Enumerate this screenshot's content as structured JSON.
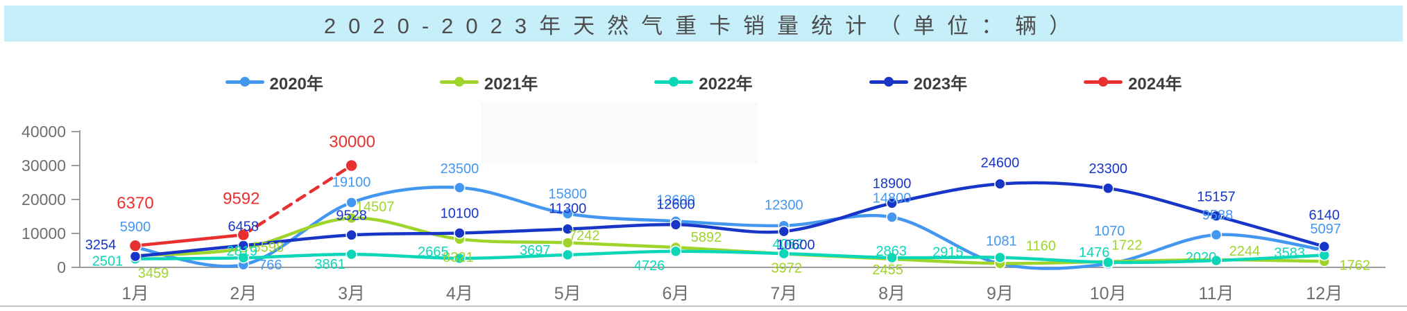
{
  "title": {
    "text": "2020-2023年天然气重卡销量统计（单位：辆）"
  },
  "legend": [
    {
      "label": "2020年",
      "color": "#4397f0"
    },
    {
      "label": "2021年",
      "color": "#9fd42a"
    },
    {
      "label": "2022年",
      "color": "#0bd6b8"
    },
    {
      "label": "2023年",
      "color": "#1736c7"
    },
    {
      "label": "2024年",
      "color": "#e93030"
    }
  ],
  "chart_data": {
    "type": "line",
    "title": "2020-2023年天然气重卡销量统计（单位：辆）",
    "xlabel": "",
    "ylabel": "",
    "ylim": [
      0,
      40000
    ],
    "yticks": [
      0,
      10000,
      20000,
      30000,
      40000
    ],
    "grid": false,
    "legend_position": "top",
    "line_style": "smooth",
    "categories": [
      "1月",
      "2月",
      "3月",
      "4月",
      "5月",
      "6月",
      "7月",
      "8月",
      "9月",
      "10月",
      "11月",
      "12月"
    ],
    "series": [
      {
        "name": "2020年",
        "color": "#4397f0",
        "values": [
          5900,
          766,
          19100,
          23500,
          15800,
          13600,
          12300,
          14800,
          1081,
          1070,
          9588,
          5097
        ],
        "label_offsets": [
          [
            0,
            -30
          ],
          [
            39,
            0
          ],
          [
            0,
            -30
          ],
          [
            0,
            -28
          ],
          [
            0,
            -29
          ],
          [
            0,
            -31
          ],
          [
            0,
            -30
          ],
          [
            0,
            -28
          ],
          [
            2,
            -33
          ],
          [
            2,
            -48
          ],
          [
            2,
            -29
          ],
          [
            2,
            -31
          ]
        ]
      },
      {
        "name": "2021年",
        "color": "#9fd42a",
        "values": [
          3459,
          5598,
          14507,
          8321,
          7242,
          5892,
          3972,
          2455,
          1160,
          1722,
          2244,
          1762
        ],
        "label_offsets": [
          [
            26,
            25
          ],
          [
            36,
            -2
          ],
          [
            34,
            -17
          ],
          [
            -2,
            26
          ],
          [
            24,
            -11
          ],
          [
            44,
            -15
          ],
          [
            4,
            20
          ],
          [
            -6,
            15
          ],
          [
            59,
            -26
          ],
          [
            27,
            -24
          ],
          [
            41,
            -13
          ],
          [
            44,
            5
          ]
        ]
      },
      {
        "name": "2022年",
        "color": "#0bd6b8",
        "values": [
          2501,
          2819,
          3861,
          2665,
          3697,
          4726,
          4062,
          2863,
          2915,
          1476,
          2020,
          3583
        ],
        "label_offsets": [
          [
            -40,
            3
          ],
          [
            -2,
            -10
          ],
          [
            -31,
            14
          ],
          [
            -38,
            -10
          ],
          [
            -47,
            -7
          ],
          [
            -38,
            20
          ],
          [
            6,
            -14
          ],
          [
            -1,
            -10
          ],
          [
            -75,
            -8
          ],
          [
            -20,
            -15
          ],
          [
            -22,
            -5
          ],
          [
            -50,
            -4
          ]
        ]
      },
      {
        "name": "2023年",
        "color": "#1736c7",
        "values": [
          3254,
          6458,
          9528,
          10100,
          11300,
          12600,
          10600,
          18900,
          24600,
          23300,
          15157,
          6140
        ],
        "label_offsets": [
          [
            -50,
            -17
          ],
          [
            0,
            -28
          ],
          [
            0,
            -29
          ],
          [
            0,
            -29
          ],
          [
            0,
            -30
          ],
          [
            0,
            -30
          ],
          [
            17,
            19
          ],
          [
            0,
            -29
          ],
          [
            0,
            -31
          ],
          [
            0,
            -29
          ],
          [
            0,
            -28
          ],
          [
            0,
            -46
          ]
        ]
      },
      {
        "name": "2024年",
        "color": "#e93030",
        "values": [
          6370,
          9592,
          30000
        ],
        "dashed_from_index": 1,
        "label_size": 24,
        "label_offsets": [
          [
            0,
            -62
          ],
          [
            -3,
            -53
          ],
          [
            1,
            -35
          ]
        ]
      }
    ]
  },
  "style": {
    "band_bg": "#c7effa",
    "axis_color": "#9b9b9b",
    "tick_text_color": "#6e6e6e",
    "bottom_rule_color": "#ababab",
    "patch_color": "#fafafa"
  }
}
